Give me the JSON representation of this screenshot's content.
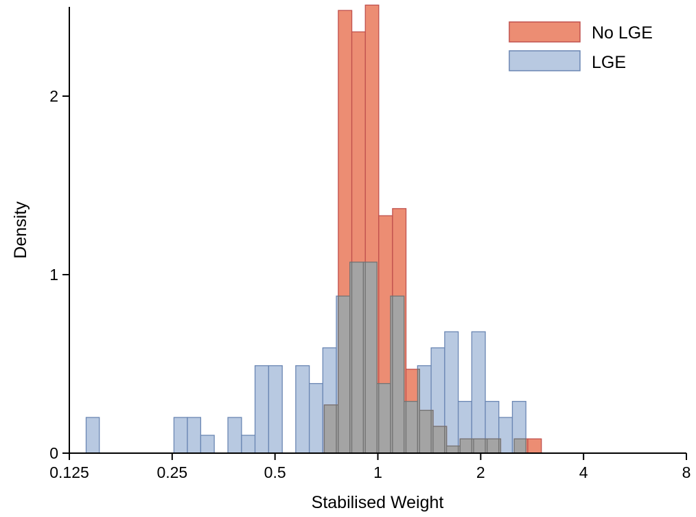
{
  "chart_data": {
    "type": "histogram",
    "xlabel": "Stabilised Weight",
    "ylabel": "Density",
    "x_scale": "log2",
    "xlim": [
      0.125,
      8
    ],
    "ylim": [
      0,
      2.5
    ],
    "x_ticks": [
      {
        "value": 0.125,
        "label": "0.125"
      },
      {
        "value": 0.25,
        "label": "0.25"
      },
      {
        "value": 0.5,
        "label": "0.5"
      },
      {
        "value": 1,
        "label": "1"
      },
      {
        "value": 2,
        "label": "2"
      },
      {
        "value": 4,
        "label": "4"
      },
      {
        "value": 8,
        "label": "8"
      }
    ],
    "y_ticks": [
      {
        "value": 0,
        "label": "0"
      },
      {
        "value": 1,
        "label": "1"
      },
      {
        "value": 2,
        "label": "2"
      }
    ],
    "legend": {
      "position": "top-right",
      "entries": [
        "No LGE",
        "LGE"
      ]
    },
    "colors": {
      "no_lge": "#ec8d73",
      "no_lge_edge": "#c0504d",
      "lge": "#b8c9e1",
      "lge_edge": "#6a86b3",
      "overlap": "#a4a4a4",
      "overlap_edge": "#737373"
    },
    "series": [
      {
        "name": "No LGE",
        "bins": [
          {
            "x0": 0.697,
            "x1": 0.766,
            "density": 0.27
          },
          {
            "x0": 0.766,
            "x1": 0.839,
            "density": 2.48
          },
          {
            "x0": 0.839,
            "x1": 0.919,
            "density": 2.36
          },
          {
            "x0": 0.919,
            "x1": 1.006,
            "density": 2.51
          },
          {
            "x0": 1.006,
            "x1": 1.104,
            "density": 1.33
          },
          {
            "x0": 1.104,
            "x1": 1.209,
            "density": 1.37
          },
          {
            "x0": 1.209,
            "x1": 1.325,
            "density": 0.47
          },
          {
            "x0": 1.325,
            "x1": 1.451,
            "density": 0.24
          },
          {
            "x0": 1.451,
            "x1": 1.589,
            "density": 0.15
          },
          {
            "x0": 1.589,
            "x1": 1.741,
            "density": 0.04
          },
          {
            "x0": 1.741,
            "x1": 1.907,
            "density": 0.08
          },
          {
            "x0": 1.907,
            "x1": 2.089,
            "density": 0.08
          },
          {
            "x0": 2.089,
            "x1": 2.288,
            "density": 0.08
          },
          {
            "x0": 2.507,
            "x1": 2.747,
            "density": 0.08
          },
          {
            "x0": 2.747,
            "x1": 3.01,
            "density": 0.08
          }
        ]
      },
      {
        "name": "LGE",
        "bins": [
          {
            "x0": 0.14,
            "x1": 0.153,
            "density": 0.2
          },
          {
            "x0": 0.253,
            "x1": 0.277,
            "density": 0.2
          },
          {
            "x0": 0.277,
            "x1": 0.303,
            "density": 0.2
          },
          {
            "x0": 0.303,
            "x1": 0.332,
            "density": 0.1
          },
          {
            "x0": 0.364,
            "x1": 0.399,
            "density": 0.2
          },
          {
            "x0": 0.399,
            "x1": 0.437,
            "density": 0.1
          },
          {
            "x0": 0.437,
            "x1": 0.479,
            "density": 0.49
          },
          {
            "x0": 0.479,
            "x1": 0.525,
            "density": 0.49
          },
          {
            "x0": 0.575,
            "x1": 0.63,
            "density": 0.49
          },
          {
            "x0": 0.63,
            "x1": 0.69,
            "density": 0.39
          },
          {
            "x0": 0.69,
            "x1": 0.756,
            "density": 0.59
          },
          {
            "x0": 0.756,
            "x1": 0.828,
            "density": 0.88
          },
          {
            "x0": 0.828,
            "x1": 0.907,
            "density": 1.07
          },
          {
            "x0": 0.907,
            "x1": 0.994,
            "density": 1.07
          },
          {
            "x0": 0.994,
            "x1": 1.089,
            "density": 0.39
          },
          {
            "x0": 1.089,
            "x1": 1.193,
            "density": 0.88
          },
          {
            "x0": 1.193,
            "x1": 1.307,
            "density": 0.29
          },
          {
            "x0": 1.307,
            "x1": 1.432,
            "density": 0.49
          },
          {
            "x0": 1.432,
            "x1": 1.569,
            "density": 0.59
          },
          {
            "x0": 1.569,
            "x1": 1.719,
            "density": 0.68
          },
          {
            "x0": 1.719,
            "x1": 1.883,
            "density": 0.29
          },
          {
            "x0": 1.883,
            "x1": 2.063,
            "density": 0.68
          },
          {
            "x0": 2.063,
            "x1": 2.26,
            "density": 0.29
          },
          {
            "x0": 2.26,
            "x1": 2.476,
            "density": 0.2
          },
          {
            "x0": 2.476,
            "x1": 2.712,
            "density": 0.29
          }
        ]
      }
    ]
  }
}
